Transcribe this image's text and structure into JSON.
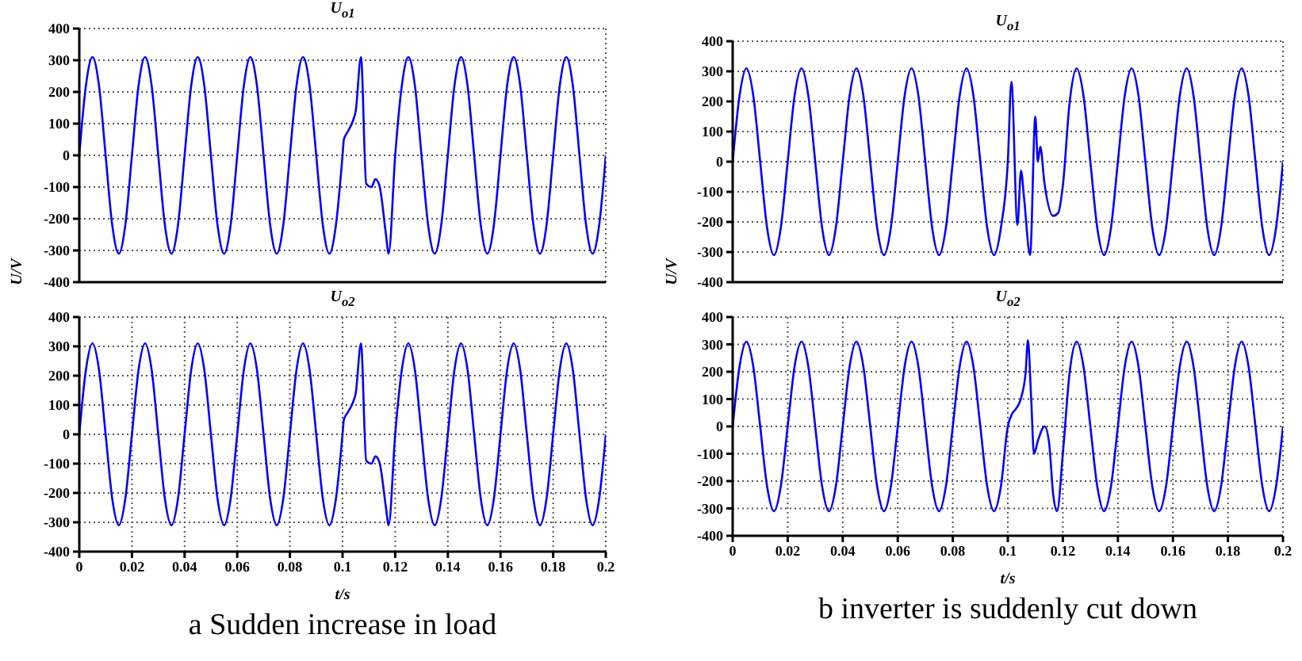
{
  "chart_data": [
    {
      "type": "line",
      "title": "U$_{o1}$",
      "xlim": [
        0,
        0.2
      ],
      "xticks": [
        0,
        0.02,
        0.04,
        0.06,
        0.08,
        0.1,
        0.12,
        0.14,
        0.16,
        0.18,
        0.2
      ],
      "ylim": [
        -400,
        400
      ],
      "yticks": [
        -400,
        -300,
        -200,
        -100,
        0,
        100,
        200,
        300,
        400
      ],
      "grid": true,
      "tick_labels": "y",
      "series": [
        {
          "color": "#0000ff",
          "x": [
            0,
            0.0025,
            0.005,
            0.0075,
            0.01,
            0.0125,
            0.015,
            0.0175,
            0.02,
            0.0225,
            0.025,
            0.0275,
            0.03,
            0.0325,
            0.035,
            0.0375,
            0.04,
            0.0425,
            0.045,
            0.0475,
            0.05,
            0.0525,
            0.055,
            0.0575,
            0.06,
            0.0625,
            0.065,
            0.0675,
            0.07,
            0.0725,
            0.075,
            0.0775,
            0.08,
            0.0825,
            0.085,
            0.0875,
            0.09,
            0.0925,
            0.095,
            0.0975,
            0.1,
            0.1005,
            0.102,
            0.104,
            0.105,
            0.107,
            0.109,
            0.111,
            0.1125,
            0.114,
            0.1165,
            0.1175,
            0.12,
            0.1225,
            0.125,
            0.1275,
            0.13,
            0.1325,
            0.135,
            0.1375,
            0.14,
            0.1425,
            0.145,
            0.1475,
            0.15,
            0.1525,
            0.155,
            0.1575,
            0.16,
            0.1625,
            0.165,
            0.1675,
            0.17,
            0.1725,
            0.175,
            0.1775,
            0.18,
            0.1825,
            0.185,
            0.1875,
            0.19,
            0.1925,
            0.195,
            0.1975,
            0.2
          ],
          "values": [
            0,
            219,
            310,
            219,
            0,
            -219,
            -310,
            -219,
            0,
            219,
            310,
            219,
            0,
            -219,
            -310,
            -219,
            0,
            219,
            310,
            219,
            0,
            -219,
            -310,
            -219,
            0,
            219,
            310,
            219,
            0,
            -219,
            -310,
            -219,
            0,
            219,
            310,
            219,
            0,
            -219,
            -310,
            -219,
            0,
            50,
            75,
            110,
            140,
            310,
            -90,
            -100,
            -75,
            -95,
            -250,
            -310,
            0,
            219,
            310,
            219,
            0,
            -219,
            -310,
            -219,
            0,
            219,
            310,
            219,
            0,
            -219,
            -310,
            -219,
            0,
            219,
            310,
            219,
            0,
            -219,
            -310,
            -219,
            0,
            219,
            310,
            219,
            0,
            -219,
            -310,
            -219,
            0
          ]
        }
      ]
    },
    {
      "type": "line",
      "title": "U$_{o2}$",
      "xlabel": "t/s",
      "ylabel": "U/V",
      "annotations": [
        "a Sudden increase in load"
      ],
      "xlim": [
        0,
        0.2
      ],
      "xticks": [
        0,
        0.02,
        0.04,
        0.06,
        0.08,
        0.1,
        0.12,
        0.14,
        0.16,
        0.18,
        0.2
      ],
      "ylim": [
        -400,
        400
      ],
      "yticks": [
        -400,
        -300,
        -200,
        -100,
        0,
        100,
        200,
        300,
        400
      ],
      "grid": true,
      "series": [
        {
          "color": "#0000ff",
          "x": [
            0,
            0.0025,
            0.005,
            0.0075,
            0.01,
            0.0125,
            0.015,
            0.0175,
            0.02,
            0.0225,
            0.025,
            0.0275,
            0.03,
            0.0325,
            0.035,
            0.0375,
            0.04,
            0.0425,
            0.045,
            0.0475,
            0.05,
            0.0525,
            0.055,
            0.0575,
            0.06,
            0.0625,
            0.065,
            0.0675,
            0.07,
            0.0725,
            0.075,
            0.0775,
            0.08,
            0.0825,
            0.085,
            0.0875,
            0.09,
            0.0925,
            0.095,
            0.0975,
            0.1,
            0.1005,
            0.102,
            0.104,
            0.105,
            0.107,
            0.109,
            0.111,
            0.1125,
            0.114,
            0.1165,
            0.1175,
            0.12,
            0.1225,
            0.125,
            0.1275,
            0.13,
            0.1325,
            0.135,
            0.1375,
            0.14,
            0.1425,
            0.145,
            0.1475,
            0.15,
            0.1525,
            0.155,
            0.1575,
            0.16,
            0.1625,
            0.165,
            0.1675,
            0.17,
            0.1725,
            0.175,
            0.1775,
            0.18,
            0.1825,
            0.185,
            0.1875,
            0.19,
            0.1925,
            0.195,
            0.1975,
            0.2
          ],
          "values": [
            0,
            219,
            310,
            219,
            0,
            -219,
            -310,
            -219,
            0,
            219,
            310,
            219,
            0,
            -219,
            -310,
            -219,
            0,
            219,
            310,
            219,
            0,
            -219,
            -310,
            -219,
            0,
            219,
            310,
            219,
            0,
            -219,
            -310,
            -219,
            0,
            219,
            310,
            219,
            0,
            -219,
            -310,
            -219,
            0,
            50,
            75,
            110,
            140,
            310,
            -90,
            -100,
            -75,
            -95,
            -250,
            -310,
            0,
            219,
            310,
            219,
            0,
            -219,
            -310,
            -219,
            0,
            219,
            310,
            219,
            0,
            -219,
            -310,
            -219,
            0,
            219,
            310,
            219,
            0,
            -219,
            -310,
            -219,
            0,
            219,
            310,
            219,
            0,
            -219,
            -310,
            -219,
            0
          ]
        }
      ]
    },
    {
      "type": "line",
      "title": "U$_{o1}$",
      "xlim": [
        0,
        0.2
      ],
      "xticks": [
        0,
        0.02,
        0.04,
        0.06,
        0.08,
        0.1,
        0.12,
        0.14,
        0.16,
        0.18,
        0.2
      ],
      "ylim": [
        -400,
        400
      ],
      "yticks": [
        -400,
        -300,
        -200,
        -100,
        0,
        100,
        200,
        300,
        400
      ],
      "grid": true,
      "tick_labels": "y",
      "series": [
        {
          "color": "#0000ff",
          "x": [
            0,
            0.0025,
            0.005,
            0.0075,
            0.01,
            0.0125,
            0.015,
            0.0175,
            0.02,
            0.0225,
            0.025,
            0.0275,
            0.03,
            0.0325,
            0.035,
            0.0375,
            0.04,
            0.0425,
            0.045,
            0.0475,
            0.05,
            0.0525,
            0.055,
            0.0575,
            0.06,
            0.0625,
            0.065,
            0.0675,
            0.07,
            0.0725,
            0.075,
            0.0775,
            0.08,
            0.0825,
            0.085,
            0.0875,
            0.09,
            0.0925,
            0.095,
            0.0975,
            0.1,
            0.1013,
            0.1035,
            0.1048,
            0.1059,
            0.1081,
            0.11,
            0.1109,
            0.1118,
            0.1133,
            0.1165,
            0.1183,
            0.12,
            0.1225,
            0.125,
            0.1275,
            0.13,
            0.1325,
            0.135,
            0.1375,
            0.14,
            0.1425,
            0.145,
            0.1475,
            0.15,
            0.1525,
            0.155,
            0.1575,
            0.16,
            0.1625,
            0.165,
            0.1675,
            0.17,
            0.1725,
            0.175,
            0.1775,
            0.18,
            0.1825,
            0.185,
            0.1875,
            0.19,
            0.1925,
            0.195,
            0.1975,
            0.2
          ],
          "values": [
            0,
            219,
            310,
            219,
            0,
            -219,
            -310,
            -219,
            0,
            219,
            310,
            219,
            0,
            -219,
            -310,
            -219,
            0,
            219,
            310,
            219,
            0,
            -219,
            -310,
            -219,
            0,
            219,
            310,
            219,
            0,
            -219,
            -310,
            -219,
            0,
            219,
            310,
            219,
            0,
            -219,
            -310,
            -219,
            0,
            265,
            -210,
            -30,
            -120,
            -310,
            150,
            0,
            50,
            -70,
            -180,
            -170,
            -80,
            200,
            310,
            219,
            0,
            -219,
            -310,
            -219,
            0,
            219,
            310,
            219,
            0,
            -219,
            -310,
            -219,
            0,
            219,
            310,
            219,
            0,
            -219,
            -310,
            -219,
            0,
            219,
            310,
            219,
            0,
            -219,
            -310,
            -219,
            0
          ]
        }
      ]
    },
    {
      "type": "line",
      "title": "U$_{o2}$",
      "xlabel": "t/s",
      "ylabel": "U/V",
      "annotations": [
        "b inverter is suddenly cut down"
      ],
      "xlim": [
        0,
        0.2
      ],
      "xticks": [
        0,
        0.02,
        0.04,
        0.06,
        0.08,
        0.1,
        0.12,
        0.14,
        0.16,
        0.18,
        0.2
      ],
      "ylim": [
        -400,
        400
      ],
      "yticks": [
        -400,
        -300,
        -200,
        -100,
        0,
        100,
        200,
        300,
        400
      ],
      "grid": true,
      "series": [
        {
          "color": "#0000ff",
          "x": [
            0,
            0.0025,
            0.005,
            0.0075,
            0.01,
            0.0125,
            0.015,
            0.0175,
            0.02,
            0.0225,
            0.025,
            0.0275,
            0.03,
            0.0325,
            0.035,
            0.0375,
            0.04,
            0.0425,
            0.045,
            0.0475,
            0.05,
            0.0525,
            0.055,
            0.0575,
            0.06,
            0.0625,
            0.065,
            0.0675,
            0.07,
            0.0725,
            0.075,
            0.0775,
            0.08,
            0.0825,
            0.085,
            0.0875,
            0.09,
            0.0925,
            0.095,
            0.0975,
            0.1,
            0.1015,
            0.103,
            0.105,
            0.1065,
            0.1073,
            0.1085,
            0.1095,
            0.111,
            0.1134,
            0.115,
            0.1165,
            0.1179,
            0.12,
            0.1225,
            0.125,
            0.1275,
            0.13,
            0.1325,
            0.135,
            0.1375,
            0.14,
            0.1425,
            0.145,
            0.1475,
            0.15,
            0.1525,
            0.155,
            0.1575,
            0.16,
            0.1625,
            0.165,
            0.1675,
            0.17,
            0.1725,
            0.175,
            0.1775,
            0.18,
            0.1825,
            0.185,
            0.1875,
            0.19,
            0.1925,
            0.195,
            0.1975,
            0.2
          ],
          "values": [
            0,
            219,
            310,
            219,
            0,
            -219,
            -310,
            -219,
            0,
            219,
            310,
            219,
            0,
            -219,
            -310,
            -219,
            0,
            219,
            310,
            219,
            0,
            -219,
            -310,
            -219,
            0,
            219,
            310,
            219,
            0,
            -219,
            -310,
            -219,
            0,
            219,
            310,
            219,
            0,
            -219,
            -310,
            -219,
            0,
            45,
            65,
            110,
            200,
            315,
            100,
            -100,
            -50,
            0,
            -60,
            -250,
            -310,
            -100,
            200,
            310,
            219,
            0,
            -219,
            -310,
            -219,
            0,
            219,
            310,
            219,
            0,
            -219,
            -310,
            -219,
            0,
            219,
            310,
            219,
            0,
            -219,
            -310,
            -219,
            0,
            219,
            310,
            219,
            0,
            -219,
            -310,
            -219,
            0
          ]
        }
      ]
    }
  ]
}
